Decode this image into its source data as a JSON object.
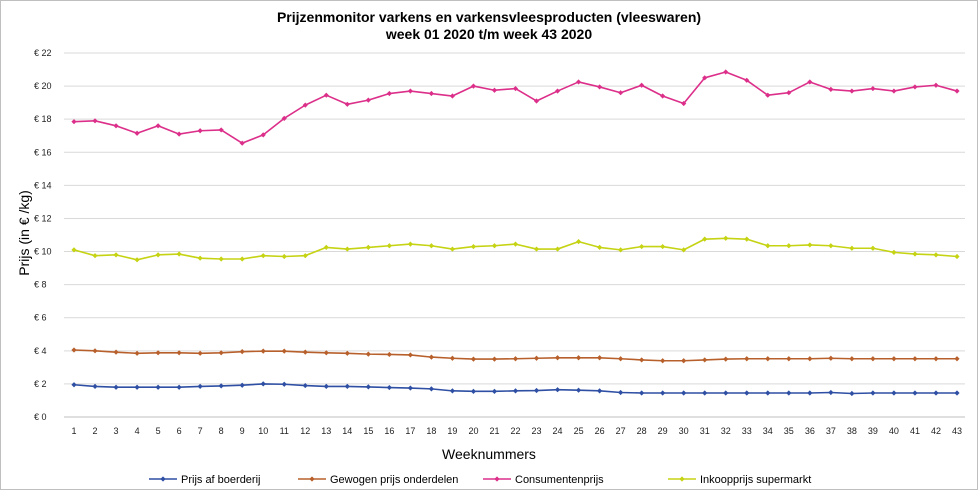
{
  "chart_data": {
    "type": "line",
    "title": "Prijzenmonitor varkens en varkensvleesproducten (vleeswaren)",
    "subtitle": "week 01 2020 t/m week 43 2020",
    "xlabel": "Weeknummers",
    "ylabel": "Prijs (in € /kg)",
    "x": [
      1,
      2,
      3,
      4,
      5,
      6,
      7,
      8,
      9,
      10,
      11,
      12,
      13,
      14,
      15,
      16,
      17,
      18,
      19,
      20,
      21,
      22,
      23,
      24,
      25,
      26,
      27,
      28,
      29,
      30,
      31,
      32,
      33,
      34,
      35,
      36,
      37,
      38,
      39,
      40,
      41,
      42,
      43
    ],
    "ylim": [
      0,
      22
    ],
    "yticks": [
      0,
      2,
      4,
      6,
      8,
      10,
      12,
      14,
      16,
      18,
      20,
      22
    ],
    "ytick_labels": [
      "€ 0",
      "€ 2",
      "€ 4",
      "€ 6",
      "€ 8",
      "€ 10",
      "€ 12",
      "€ 14",
      "€ 16",
      "€ 18",
      "€ 20",
      "€ 22"
    ],
    "grid": true,
    "legend_position": "bottom",
    "series": [
      {
        "name": "Prijs af boerderij",
        "color": "#2e4fa3",
        "values": [
          1.95,
          1.85,
          1.8,
          1.8,
          1.8,
          1.8,
          1.85,
          1.88,
          1.92,
          2.0,
          1.98,
          1.9,
          1.85,
          1.85,
          1.82,
          1.78,
          1.75,
          1.7,
          1.58,
          1.55,
          1.55,
          1.58,
          1.6,
          1.65,
          1.62,
          1.58,
          1.48,
          1.45,
          1.45,
          1.45,
          1.45,
          1.45,
          1.45,
          1.45,
          1.45,
          1.45,
          1.48,
          1.42,
          1.45,
          1.45,
          1.45,
          1.45,
          1.45
        ]
      },
      {
        "name": "Gewogen prijs onderdelen",
        "color": "#b8602c",
        "values": [
          4.05,
          4.0,
          3.92,
          3.85,
          3.88,
          3.88,
          3.85,
          3.88,
          3.95,
          3.98,
          3.98,
          3.92,
          3.88,
          3.85,
          3.8,
          3.78,
          3.75,
          3.62,
          3.55,
          3.5,
          3.5,
          3.52,
          3.55,
          3.58,
          3.58,
          3.58,
          3.52,
          3.45,
          3.4,
          3.4,
          3.45,
          3.5,
          3.52,
          3.52,
          3.52,
          3.52,
          3.55,
          3.52,
          3.52,
          3.52,
          3.52,
          3.52,
          3.52
        ]
      },
      {
        "name": "Consumentenprijs",
        "color": "#dc2f8a",
        "values": [
          17.85,
          17.9,
          17.6,
          17.15,
          17.6,
          17.1,
          17.3,
          17.35,
          16.55,
          17.05,
          18.05,
          18.85,
          19.45,
          18.9,
          19.15,
          19.55,
          19.7,
          19.55,
          19.4,
          20.0,
          19.75,
          19.85,
          19.1,
          19.7,
          20.25,
          19.95,
          19.6,
          20.05,
          19.4,
          18.95,
          20.5,
          20.85,
          20.35,
          19.45,
          19.6,
          20.25,
          19.8,
          19.7,
          19.85,
          19.7,
          19.95,
          20.05,
          19.7
        ]
      },
      {
        "name": "Inkoopprijs supermarkt",
        "color": "#c5d313",
        "values": [
          10.1,
          9.75,
          9.8,
          9.5,
          9.8,
          9.85,
          9.6,
          9.55,
          9.55,
          9.75,
          9.7,
          9.75,
          10.25,
          10.15,
          10.25,
          10.35,
          10.45,
          10.35,
          10.15,
          10.3,
          10.35,
          10.45,
          10.15,
          10.15,
          10.6,
          10.25,
          10.1,
          10.3,
          10.3,
          10.1,
          10.75,
          10.8,
          10.75,
          10.35,
          10.35,
          10.4,
          10.35,
          10.2,
          10.2,
          9.95,
          9.85,
          9.8,
          9.7
        ]
      }
    ]
  }
}
